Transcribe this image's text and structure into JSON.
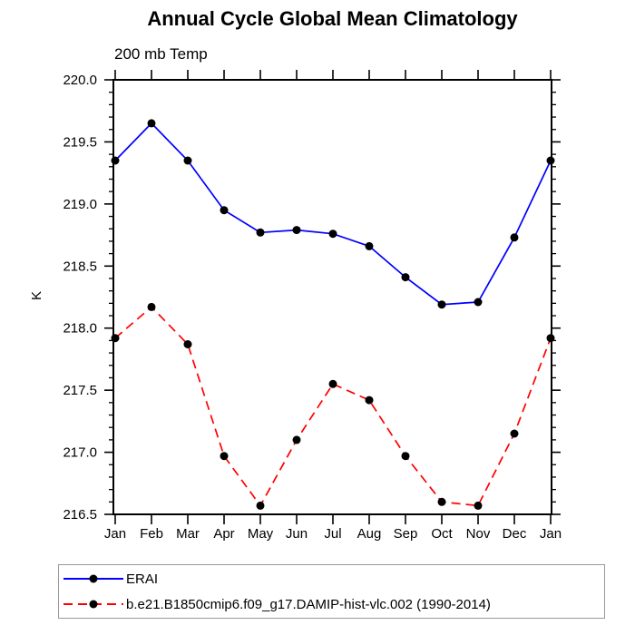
{
  "chart_data": {
    "type": "line",
    "title": "Annual Cycle Global Mean Climatology",
    "subtitle": "200 mb Temp",
    "ylabel": "K",
    "xlabel": "",
    "ylim": [
      216.5,
      220.0
    ],
    "ytick_step": 0.5,
    "yminor_step": 0.1,
    "ytick_labels": [
      "220.0",
      "219.5",
      "219.0",
      "218.5",
      "218.0",
      "217.5",
      "217.0",
      "216.5"
    ],
    "grid": false,
    "legend_position": "bottom",
    "frame_color": "#000000",
    "categories": [
      "Jan",
      "Feb",
      "Mar",
      "Apr",
      "May",
      "Jun",
      "Jul",
      "Aug",
      "Sep",
      "Oct",
      "Nov",
      "Dec",
      "Jan"
    ],
    "series": [
      {
        "name": "ERAI",
        "color": "#0000ff",
        "line_style": "solid",
        "marker": "filled-circle",
        "marker_color": "#000000",
        "values": [
          219.35,
          219.65,
          219.35,
          218.95,
          218.77,
          218.79,
          218.76,
          218.66,
          218.41,
          218.19,
          218.21,
          218.73,
          219.35
        ]
      },
      {
        "name": "b.e21.B1850cmip6.f09_g17.DAMIP-hist-vlc.002 (1990-2014)",
        "color": "#ff0000",
        "line_style": "dashed",
        "marker": "filled-circle",
        "marker_color": "#000000",
        "values": [
          217.92,
          218.17,
          217.87,
          216.97,
          216.57,
          217.1,
          217.55,
          217.42,
          216.97,
          216.6,
          216.57,
          217.15,
          217.92
        ]
      }
    ]
  },
  "legend": {
    "border_color": "#999999"
  }
}
